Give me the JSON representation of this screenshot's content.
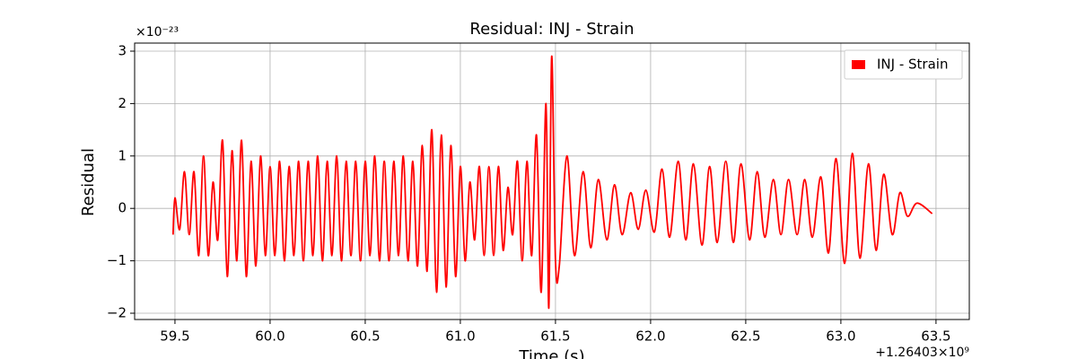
{
  "chart_data": {
    "type": "line",
    "title": "Residual: INJ - Strain",
    "x_label": "Time (s)",
    "y_label": "Residual",
    "y_offset_label": "×10⁻²³",
    "x_offset_label": "+1.26403×10⁹",
    "x": [
      59.49,
      59.5,
      59.525,
      59.55,
      59.575,
      59.6,
      59.625,
      59.65,
      59.675,
      59.7,
      59.725,
      59.75,
      59.775,
      59.8,
      59.825,
      59.85,
      59.875,
      59.9,
      59.925,
      59.95,
      59.975,
      60.0,
      60.025,
      60.05,
      60.075,
      60.1,
      60.125,
      60.15,
      60.175,
      60.2,
      60.225,
      60.25,
      60.275,
      60.3,
      60.325,
      60.35,
      60.375,
      60.4,
      60.425,
      60.45,
      60.475,
      60.5,
      60.525,
      60.55,
      60.575,
      60.6,
      60.625,
      60.65,
      60.675,
      60.7,
      60.725,
      60.75,
      60.775,
      60.8,
      60.825,
      60.85,
      60.875,
      60.9,
      60.925,
      60.95,
      60.975,
      61.0,
      61.025,
      61.05,
      61.075,
      61.1,
      61.125,
      61.15,
      61.175,
      61.2,
      61.225,
      61.25,
      61.275,
      61.3,
      61.325,
      61.35,
      61.375,
      61.4,
      61.425,
      61.45,
      61.465,
      61.48,
      61.5,
      61.52,
      61.56,
      61.6,
      61.645,
      61.685,
      61.725,
      61.77,
      61.81,
      61.85,
      61.895,
      61.935,
      61.975,
      62.02,
      62.06,
      62.1,
      62.145,
      62.185,
      62.225,
      62.27,
      62.31,
      62.35,
      62.395,
      62.435,
      62.475,
      62.52,
      62.56,
      62.6,
      62.645,
      62.685,
      62.725,
      62.77,
      62.81,
      62.85,
      62.895,
      62.935,
      62.975,
      63.02,
      63.06,
      63.1,
      63.145,
      63.185,
      63.225,
      63.27,
      63.31,
      63.35,
      63.4,
      63.48
    ],
    "series": [
      {
        "name": "INJ - Strain",
        "color": "#ff0000",
        "values": [
          -0.5,
          0.2,
          -0.4,
          0.7,
          -0.5,
          0.7,
          -0.9,
          1.0,
          -0.9,
          0.5,
          -0.6,
          1.3,
          -1.3,
          1.1,
          -1.0,
          1.3,
          -1.3,
          0.9,
          -1.1,
          1.0,
          -0.9,
          0.8,
          -0.9,
          0.9,
          -1.0,
          0.8,
          -0.9,
          0.9,
          -1.0,
          0.9,
          -0.9,
          1.0,
          -1.0,
          0.9,
          -0.9,
          1.0,
          -1.0,
          0.9,
          -0.9,
          0.9,
          -1.0,
          0.9,
          -0.9,
          1.0,
          -1.0,
          0.9,
          -1.0,
          0.9,
          -0.9,
          1.0,
          -1.0,
          0.9,
          -1.1,
          1.2,
          -1.2,
          1.5,
          -1.6,
          1.4,
          -1.5,
          1.2,
          -1.3,
          0.8,
          -1.0,
          0.5,
          -0.6,
          0.8,
          -0.9,
          0.8,
          -0.9,
          0.8,
          -0.8,
          0.4,
          -0.5,
          0.9,
          -1.0,
          0.9,
          -0.9,
          1.4,
          -1.6,
          2.0,
          -1.9,
          2.9,
          -1.0,
          -1.1,
          1.0,
          -0.9,
          0.7,
          -0.75,
          0.55,
          -0.6,
          0.45,
          -0.5,
          0.3,
          -0.4,
          0.35,
          -0.45,
          0.75,
          -0.55,
          0.9,
          -0.6,
          0.85,
          -0.7,
          0.8,
          -0.65,
          0.9,
          -0.65,
          0.85,
          -0.6,
          0.7,
          -0.55,
          0.55,
          -0.5,
          0.55,
          -0.5,
          0.55,
          -0.55,
          0.6,
          -0.85,
          0.95,
          -1.05,
          1.05,
          -0.95,
          0.85,
          -0.8,
          0.65,
          -0.5,
          0.3,
          -0.15,
          0.1,
          -0.1
        ]
      }
    ],
    "xlim": [
      59.288,
      63.675
    ],
    "ylim": [
      -2.12,
      3.154
    ],
    "xticks": [
      59.5,
      {
        "value": 60,
        "label": "60.0"
      },
      60.5,
      {
        "value": 61,
        "label": "61.0"
      },
      61.5,
      {
        "value": 62,
        "label": "62.0"
      },
      62.5,
      {
        "value": 63,
        "label": "63.0"
      },
      63.5
    ],
    "yticks": [
      {
        "value": -2,
        "label": "−2"
      },
      {
        "value": -1,
        "label": "−1"
      },
      0,
      1,
      2,
      3
    ],
    "grid": true,
    "legend": "upper right"
  }
}
